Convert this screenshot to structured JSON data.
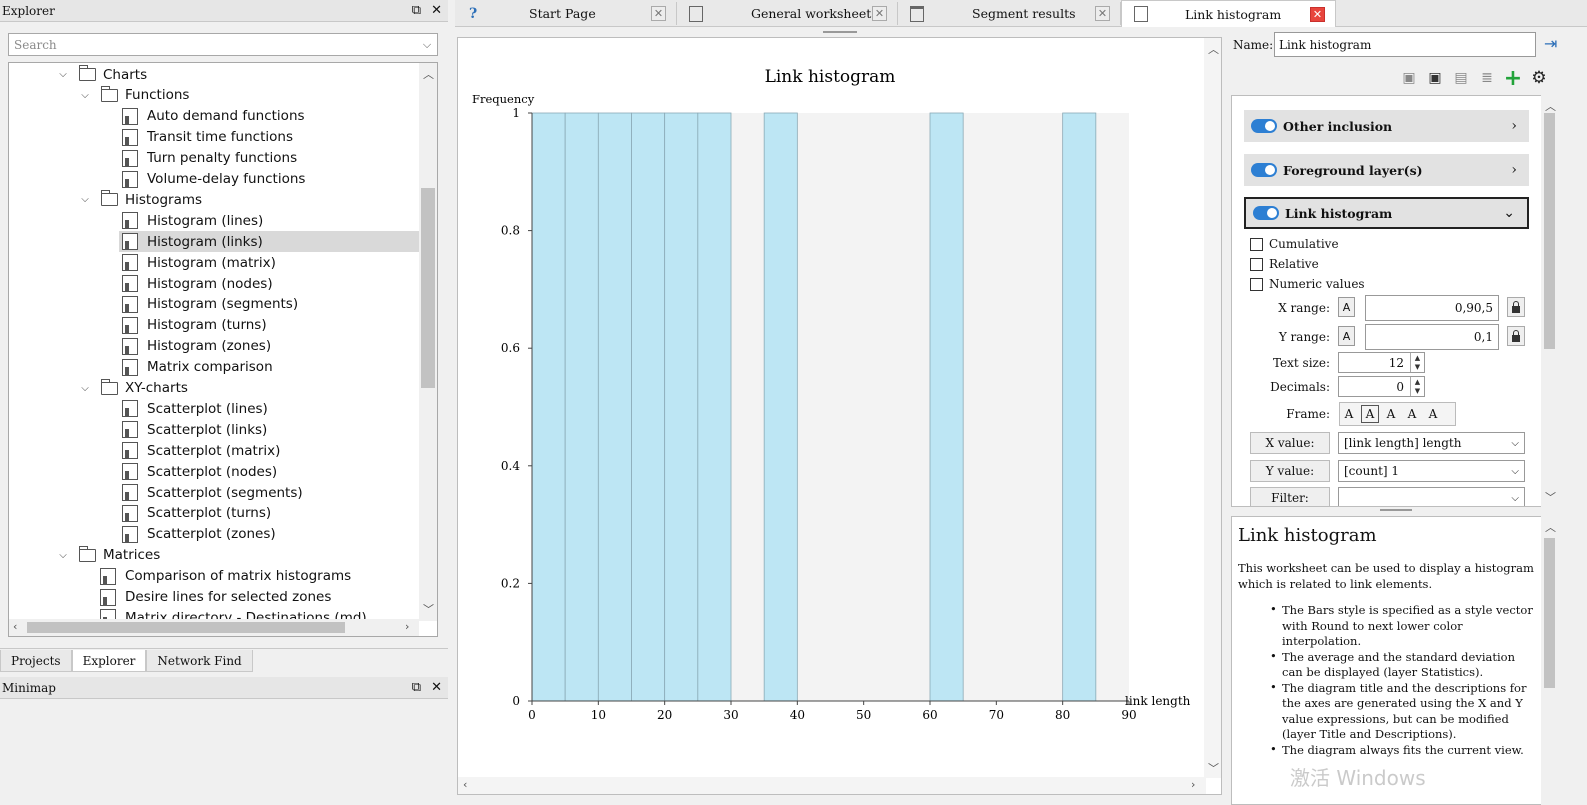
{
  "explorer": {
    "title": "Explorer",
    "search_placeholder": "Search",
    "tree": [
      {
        "label": "Charts",
        "type": "folder",
        "level": 0,
        "expanded": true
      },
      {
        "label": "Functions",
        "type": "folder",
        "level": 1,
        "expanded": true
      },
      {
        "label": "Auto demand functions",
        "type": "doc",
        "level": 2
      },
      {
        "label": "Transit time functions",
        "type": "doc",
        "level": 2
      },
      {
        "label": "Turn penalty functions",
        "type": "doc",
        "level": 2
      },
      {
        "label": "Volume-delay functions",
        "type": "doc",
        "level": 2
      },
      {
        "label": "Histograms",
        "type": "folder",
        "level": 1,
        "expanded": true
      },
      {
        "label": "Histogram (lines)",
        "type": "doc",
        "level": 2
      },
      {
        "label": "Histogram (links)",
        "type": "doc",
        "level": 2,
        "selected": true
      },
      {
        "label": "Histogram (matrix)",
        "type": "doc",
        "level": 2
      },
      {
        "label": "Histogram (nodes)",
        "type": "doc",
        "level": 2
      },
      {
        "label": "Histogram (segments)",
        "type": "doc",
        "level": 2
      },
      {
        "label": "Histogram (turns)",
        "type": "doc",
        "level": 2
      },
      {
        "label": "Histogram (zones)",
        "type": "doc",
        "level": 2
      },
      {
        "label": "Matrix comparison",
        "type": "doc",
        "level": 2
      },
      {
        "label": "XY-charts",
        "type": "folder",
        "level": 1,
        "expanded": true
      },
      {
        "label": "Scatterplot (lines)",
        "type": "doc",
        "level": 2
      },
      {
        "label": "Scatterplot (links)",
        "type": "doc",
        "level": 2
      },
      {
        "label": "Scatterplot (matrix)",
        "type": "doc",
        "level": 2
      },
      {
        "label": "Scatterplot (nodes)",
        "type": "doc",
        "level": 2
      },
      {
        "label": "Scatterplot (segments)",
        "type": "doc",
        "level": 2
      },
      {
        "label": "Scatterplot (turns)",
        "type": "doc",
        "level": 2
      },
      {
        "label": "Scatterplot (zones)",
        "type": "doc",
        "level": 2
      },
      {
        "label": "Matrices",
        "type": "folder",
        "level": 0,
        "expanded": true
      },
      {
        "label": "Comparison of matrix histograms",
        "type": "doc",
        "level": 1
      },
      {
        "label": "Desire lines for selected zones",
        "type": "doc",
        "level": 1
      },
      {
        "label": "Matrix directory - Destinations (md)",
        "type": "doc",
        "level": 1
      }
    ],
    "bottom_tabs": [
      "Projects",
      "Explorer",
      "Network Find"
    ],
    "active_bottom_tab": "Explorer"
  },
  "minimap": {
    "title": "Minimap"
  },
  "tabs": [
    {
      "label": "Start Page",
      "icon": "help-icon"
    },
    {
      "label": "General worksheet",
      "icon": "chart-icon"
    },
    {
      "label": "Segment results",
      "icon": "table-icon"
    },
    {
      "label": "Link histogram",
      "icon": "chart-icon",
      "active": true
    }
  ],
  "properties": {
    "name_label": "Name:",
    "name_value": "Link histogram",
    "groups": [
      {
        "label": "Other inclusion",
        "enabled": true,
        "expanded": false
      },
      {
        "label": "Foreground layer(s)",
        "enabled": true,
        "expanded": false
      },
      {
        "label": "Link histogram",
        "enabled": true,
        "expanded": true
      }
    ],
    "checkboxes": [
      {
        "label": "Cumulative",
        "checked": false
      },
      {
        "label": "Relative",
        "checked": false
      },
      {
        "label": "Numeric values",
        "checked": false
      }
    ],
    "x_range_label": "X range:",
    "x_range_value": "0,90,5",
    "y_range_label": "Y range:",
    "y_range_value": "0,1",
    "auto_label": "A",
    "text_size_label": "Text size:",
    "text_size_value": "12",
    "decimals_label": "Decimals:",
    "decimals_value": "0",
    "frame_label": "Frame:",
    "frame_options": [
      "A",
      "A",
      "A",
      "A",
      "A"
    ],
    "x_value_label": "X value:",
    "x_value": "[link length] length",
    "y_value_label": "Y value:",
    "y_value": "[count] 1",
    "filter_label": "Filter:",
    "filter_value": ""
  },
  "description": {
    "title": "Link histogram",
    "intro": "This worksheet can be used to display a histogram which is related to link elements.",
    "bullets": [
      "The Bars style is specified as a style vector with Round to next lower color interpolation.",
      "The average and the standard deviation can be displayed (layer Statistics).",
      "The diagram title and the descriptions for the axes are generated using the X and Y value expressions, but can be modified (layer Title and Descriptions).",
      "The diagram always fits the current view."
    ],
    "watermark": "激活 Windows"
  },
  "chart_data": {
    "type": "bar",
    "title": "Link histogram",
    "ylabel": "Frequency",
    "xlabel": "link length",
    "xlim": [
      0,
      90
    ],
    "ylim": [
      0,
      1
    ],
    "x_ticks": [
      "0",
      "10",
      "20",
      "30",
      "40",
      "50",
      "60",
      "70",
      "80",
      "90"
    ],
    "y_ticks": [
      "0",
      "0.2",
      "0.4",
      "0.6",
      "0.8",
      "1"
    ],
    "bin_width": 5,
    "bins": [
      {
        "x0": 0,
        "x1": 5,
        "value": 1
      },
      {
        "x0": 5,
        "x1": 10,
        "value": 1
      },
      {
        "x0": 10,
        "x1": 15,
        "value": 1
      },
      {
        "x0": 15,
        "x1": 20,
        "value": 1
      },
      {
        "x0": 20,
        "x1": 25,
        "value": 1
      },
      {
        "x0": 25,
        "x1": 30,
        "value": 1
      },
      {
        "x0": 35,
        "x1": 40,
        "value": 1
      },
      {
        "x0": 60,
        "x1": 65,
        "value": 1
      },
      {
        "x0": 80,
        "x1": 85,
        "value": 1
      }
    ],
    "bar_color": "#bde6f4",
    "bar_border": "#8aa9b6",
    "plot_background": "#f3f3f3",
    "grid": false
  },
  "colors": {
    "toggle_on": "#2d7fd3",
    "close_active": "#e8453c",
    "add_icon": "#22a33a"
  }
}
